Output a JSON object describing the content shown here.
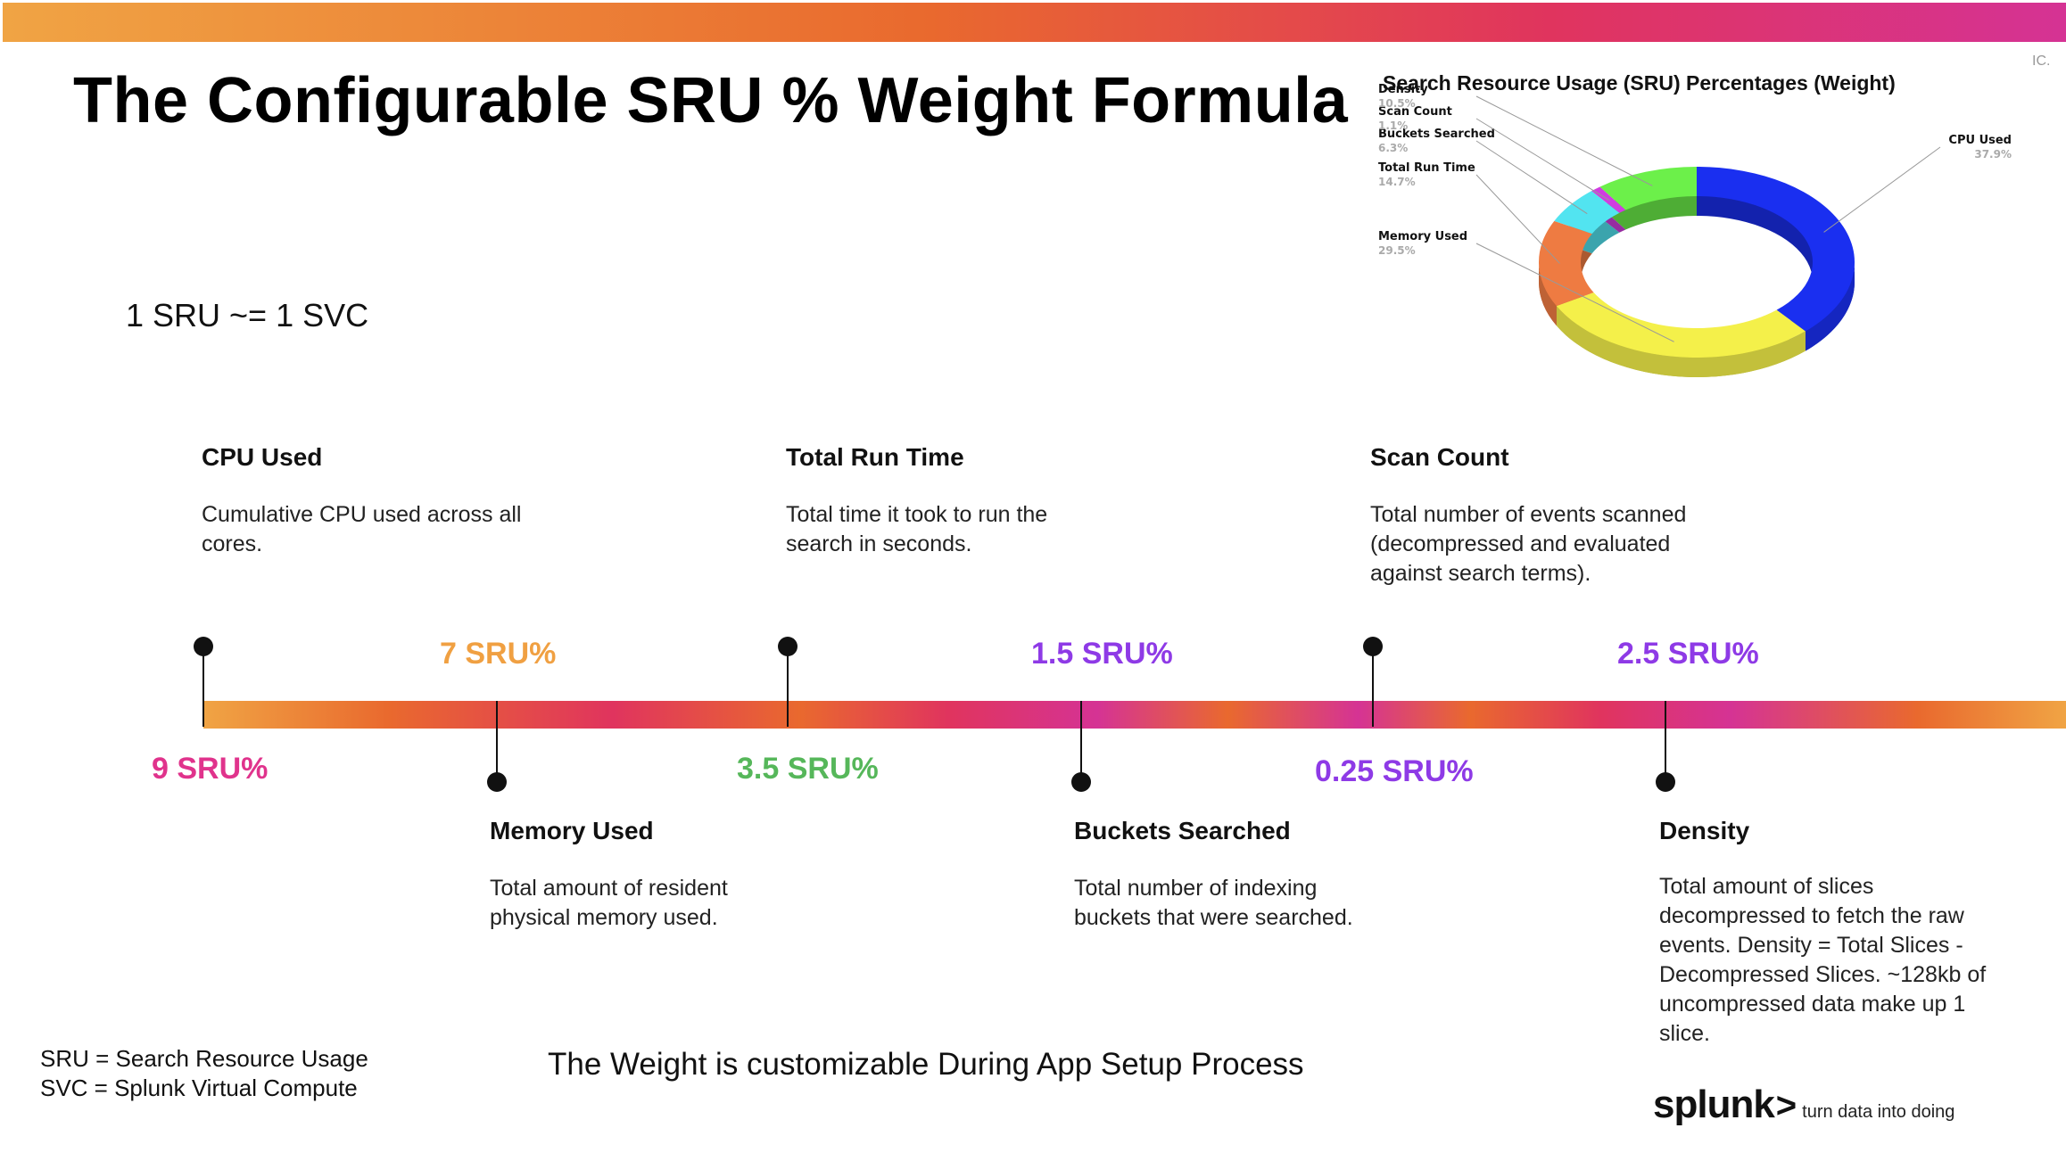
{
  "slide": {
    "title": "The Configurable SRU % Weight Formula",
    "equation": "1 SRU ~= 1 SVC",
    "corner_mark": "IC.",
    "footer_note": "The Weight is customizable During App Setup Process",
    "legend": [
      "SRU = Search Resource Usage",
      "SVC = Splunk Virtual Compute"
    ],
    "logo": {
      "word": "splunk",
      "chevron": ">",
      "tagline": "turn data into doing"
    }
  },
  "timeline": {
    "categories": [
      {
        "title": "CPU Used",
        "desc": "Cumulative CPU used across all cores.",
        "weight": "9 SRU%",
        "color": "#e0338c"
      },
      {
        "title": "Memory Used",
        "desc": "Total amount of resident physical memory used.",
        "weight": "7 SRU%",
        "color": "#f0a042"
      },
      {
        "title": "Total Run Time",
        "desc": "Total time it took to run the search in seconds.",
        "weight": "3.5 SRU%",
        "color": "#56b75a"
      },
      {
        "title": "Buckets Searched",
        "desc": "Total number of indexing buckets that were searched.",
        "weight": "1.5 SRU%",
        "color": "#8e3ae6"
      },
      {
        "title": "Scan Count",
        "desc": "Total number of events scanned (decompressed and evaluated against search terms).",
        "weight": "0.25 SRU%",
        "color": "#8e3ae6"
      },
      {
        "title": "Density",
        "desc": "Total amount of slices decompressed to fetch the raw events.  Density = Total Slices - Decompressed Slices.  ~128kb of uncompressed data make up 1 slice.",
        "weight": "2.5 SRU%",
        "color": "#8e3ae6"
      }
    ]
  },
  "chart_data": {
    "type": "pie",
    "title": "Search Resource Usage (SRU) Percentages (Weight)",
    "slices": [
      {
        "label": "CPU Used",
        "value": 37.9,
        "display": "37.9%",
        "color": "#1a2ff0"
      },
      {
        "label": "Memory Used",
        "value": 29.5,
        "display": "29.5%",
        "color": "#f4f04a"
      },
      {
        "label": "Total Run Time",
        "value": 14.7,
        "display": "14.7%",
        "color": "#ee7b42"
      },
      {
        "label": "Buckets Searched",
        "value": 6.3,
        "display": "6.3%",
        "color": "#52e4f0"
      },
      {
        "label": "Scan Count",
        "value": 1.1,
        "display": "1.1%",
        "color": "#d03de0"
      },
      {
        "label": "Density",
        "value": 10.5,
        "display": "10.5%",
        "color": "#6cf04a"
      }
    ]
  }
}
